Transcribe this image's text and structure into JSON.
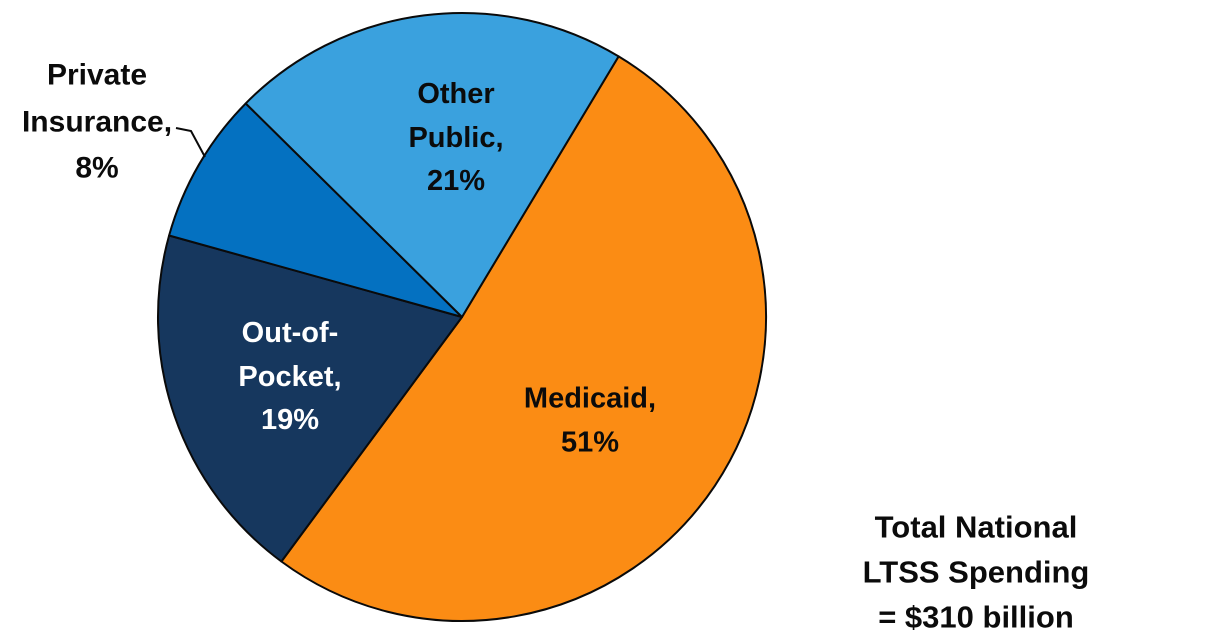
{
  "chart_data": {
    "type": "pie",
    "title": "",
    "legend_position": "none",
    "background_color": "#ffffff",
    "slice_border_color": "#0a0a0a",
    "start_angle_deg": 31,
    "clockwise": true,
    "slices": [
      {
        "name": "Medicaid",
        "value_pct": 51,
        "color": "#FB8C14",
        "label": "Medicaid,\n51%",
        "label_color": "#0b0b0b",
        "label_placement": "inside"
      },
      {
        "name": "Out-of-Pocket",
        "value_pct": 19,
        "color": "#16375E",
        "label": "Out-of-\nPocket,\n19%",
        "label_color": "#ffffff",
        "label_placement": "inside"
      },
      {
        "name": "Private Insurance",
        "value_pct": 8,
        "color": "#0471C1",
        "label": "Private\nInsurance,\n8%",
        "label_color": "#0b0b0b",
        "label_placement": "outside-with-leader-line"
      },
      {
        "name": "Other Public",
        "value_pct": 21,
        "color": "#3AA1DE",
        "label": "Other\nPublic,\n21%",
        "label_color": "#0b0b0b",
        "label_placement": "inside"
      }
    ],
    "annotation": "Total National LTSS Spending\n= $310 billion"
  }
}
